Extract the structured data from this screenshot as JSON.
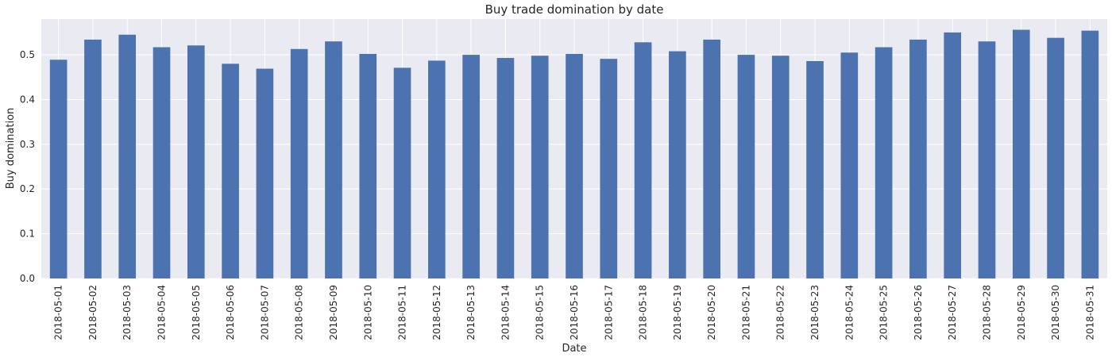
{
  "chart_data": {
    "type": "bar",
    "title": "Buy trade domination by date",
    "xlabel": "Date",
    "ylabel": "Buy domination",
    "ylim": [
      0,
      0.58
    ],
    "yticks": [
      0.0,
      0.1,
      0.2,
      0.3,
      0.4,
      0.5
    ],
    "ytick_labels": [
      "0.0",
      "0.1",
      "0.2",
      "0.3",
      "0.4",
      "0.5"
    ],
    "grid": true,
    "legend": "none",
    "colors": {
      "bar": "#4c72b0",
      "plot_background": "#eaeaf2",
      "grid": "#ffffff",
      "text": "#262626"
    },
    "categories": [
      "2018-05-01",
      "2018-05-02",
      "2018-05-03",
      "2018-05-04",
      "2018-05-05",
      "2018-05-06",
      "2018-05-07",
      "2018-05-08",
      "2018-05-09",
      "2018-05-10",
      "2018-05-11",
      "2018-05-12",
      "2018-05-13",
      "2018-05-14",
      "2018-05-15",
      "2018-05-16",
      "2018-05-17",
      "2018-05-18",
      "2018-05-19",
      "2018-05-20",
      "2018-05-21",
      "2018-05-22",
      "2018-05-23",
      "2018-05-24",
      "2018-05-25",
      "2018-05-26",
      "2018-05-27",
      "2018-05-28",
      "2018-05-29",
      "2018-05-30",
      "2018-05-31"
    ],
    "values": [
      0.489,
      0.534,
      0.545,
      0.517,
      0.521,
      0.48,
      0.469,
      0.513,
      0.53,
      0.502,
      0.471,
      0.487,
      0.5,
      0.493,
      0.498,
      0.502,
      0.491,
      0.528,
      0.508,
      0.534,
      0.5,
      0.498,
      0.486,
      0.505,
      0.517,
      0.534,
      0.55,
      0.53,
      0.556,
      0.538,
      0.554
    ]
  }
}
